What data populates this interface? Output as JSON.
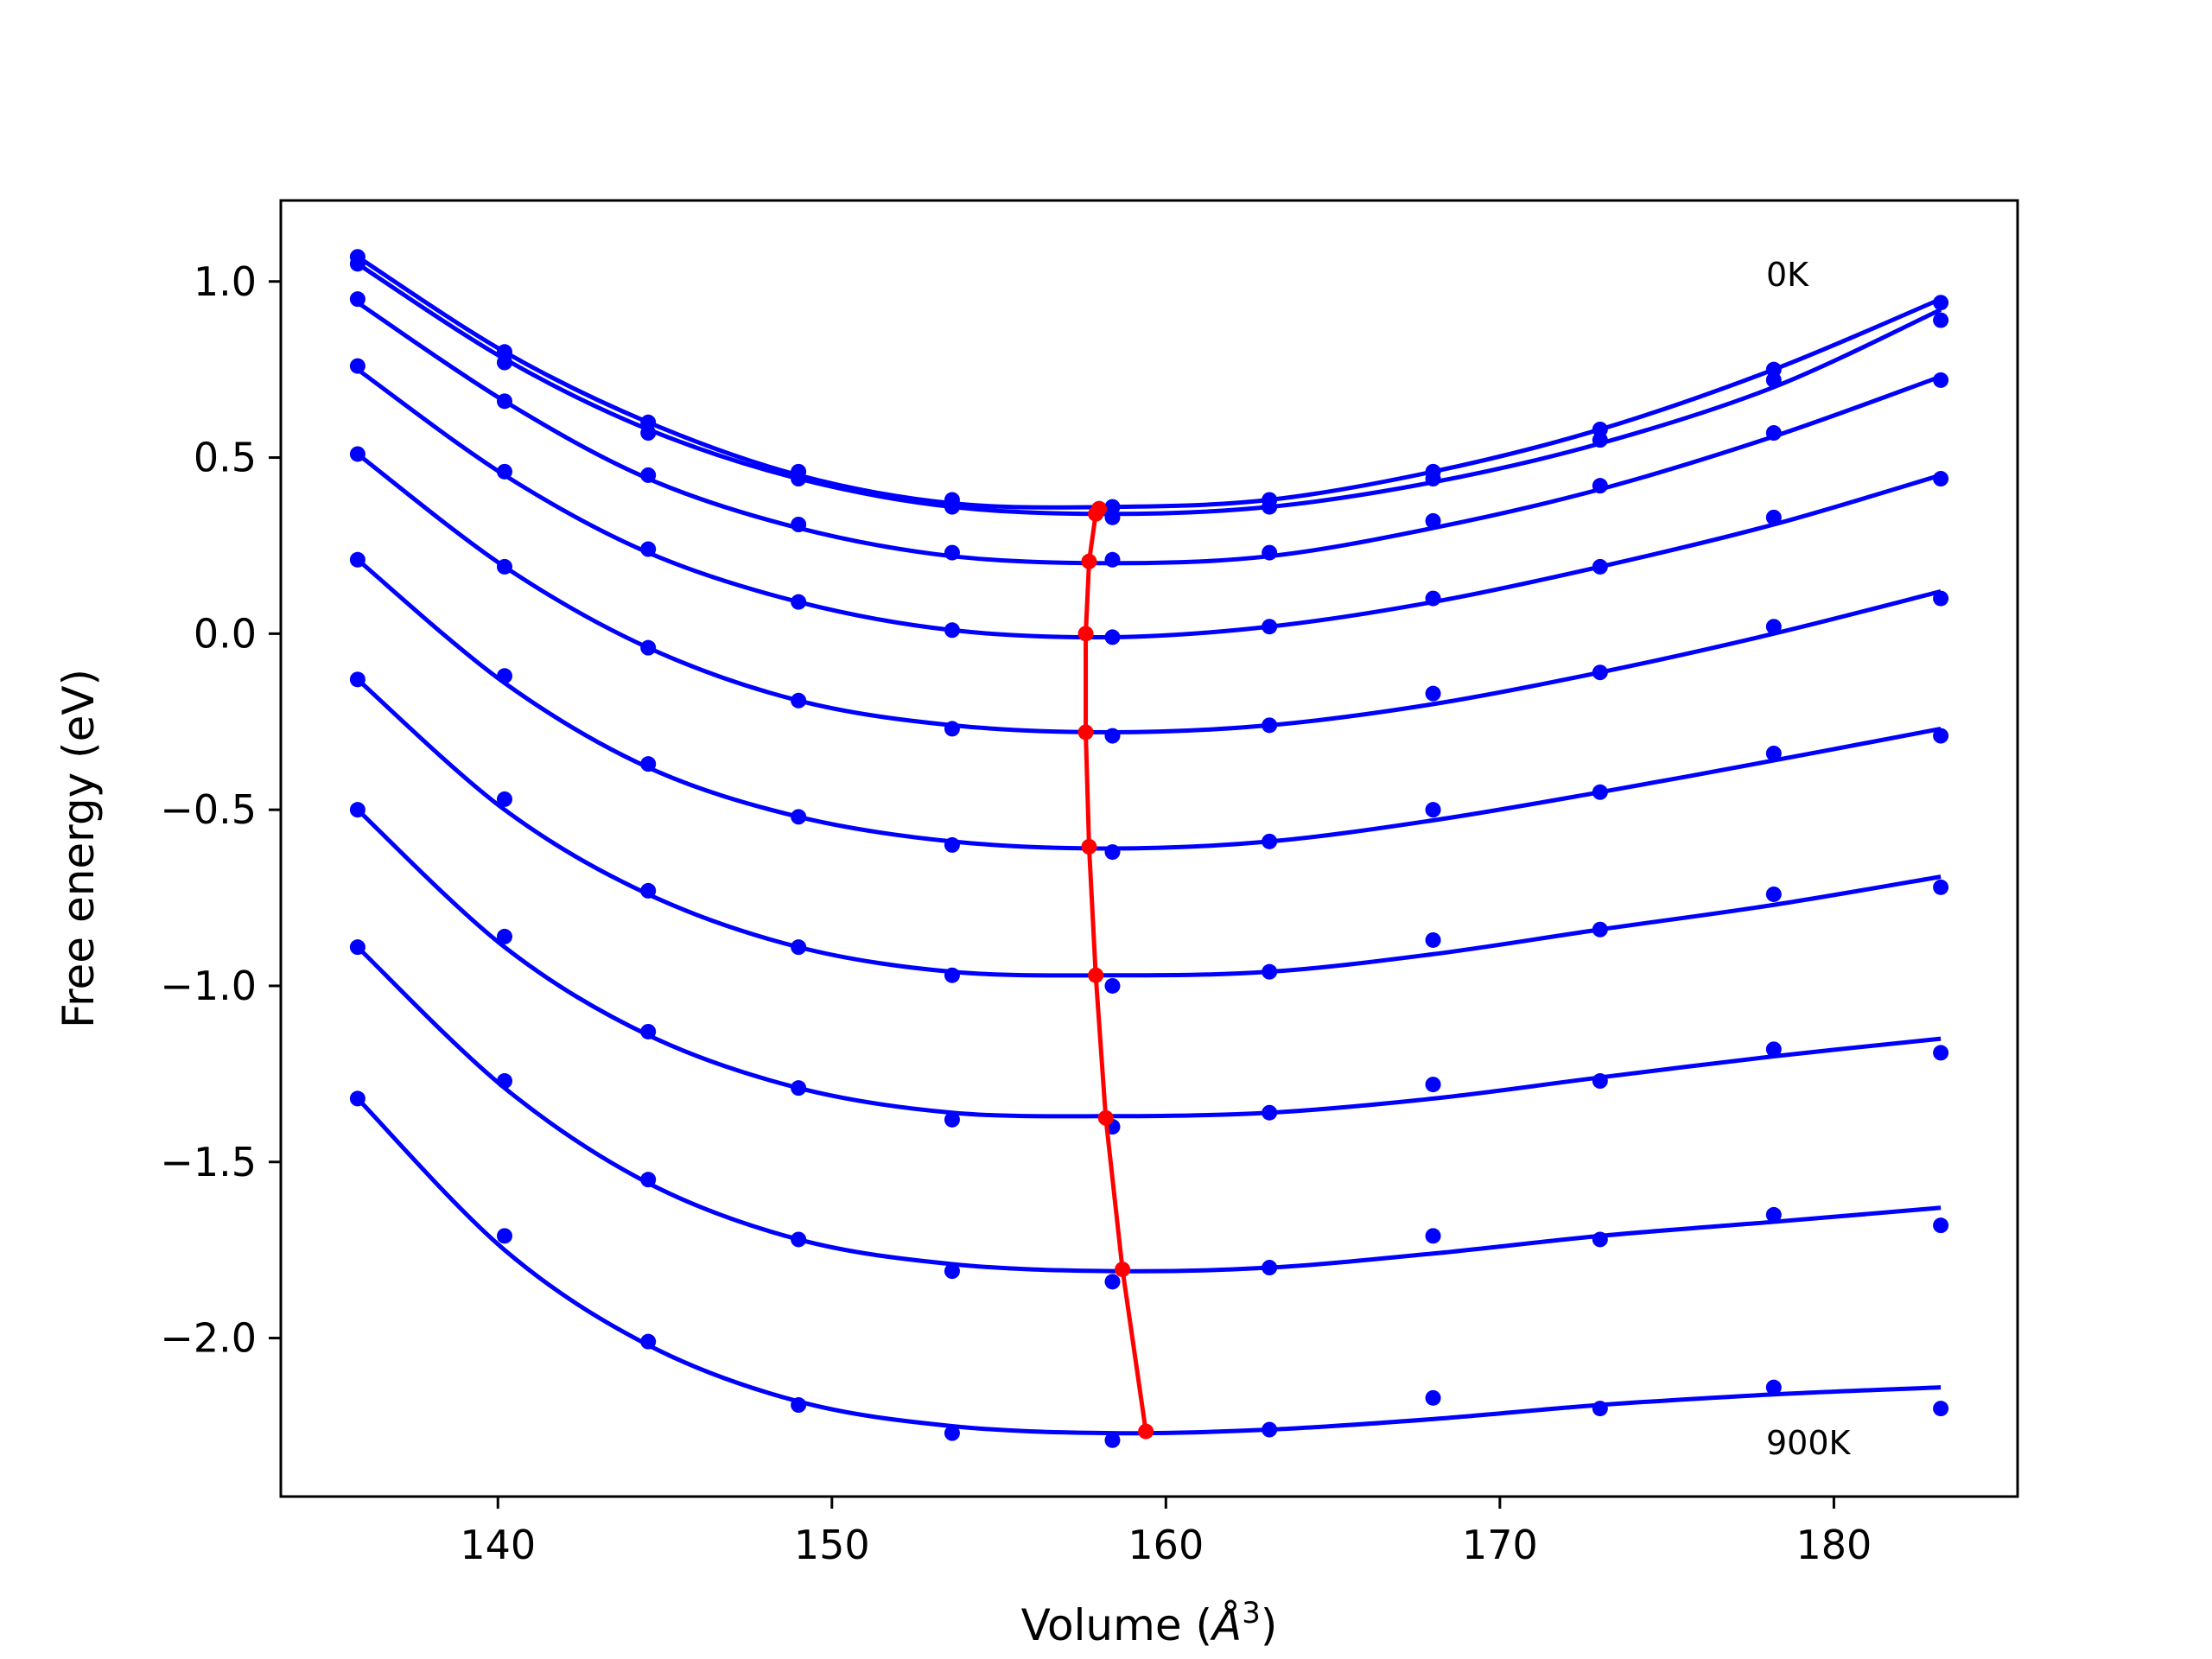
{
  "chart_data": {
    "type": "line",
    "xlabel_main": "Volume (",
    "xlabel_unit": "Å",
    "xlabel_sup": "3",
    "xlabel_close": ")",
    "ylabel": "Free energy (eV)",
    "xlim": [
      133.5,
      185.5
    ],
    "ylim": [
      -2.45,
      1.23
    ],
    "xticks": [
      140,
      150,
      160,
      170,
      180
    ],
    "xtick_labels": [
      "140",
      "150",
      "160",
      "170",
      "180"
    ],
    "yticks": [
      1.0,
      0.5,
      0.0,
      -0.5,
      -1.0,
      -1.5,
      -2.0
    ],
    "ytick_labels": [
      "1.0",
      "0.5",
      "0.0",
      "−0.5",
      "−1.0",
      "−1.5",
      "−2.0"
    ],
    "annotations": [
      {
        "text": "0K",
        "x": 178.2,
        "y": 1.0
      },
      {
        "text": "900K",
        "x": 178.2,
        "y": -2.36
      }
    ],
    "points_x": [
      135.8,
      140.2,
      144.5,
      149.0,
      153.6,
      158.4,
      163.1,
      168.0,
      173.0,
      178.2,
      183.2
    ],
    "series": [
      {
        "name": "0K",
        "points": [
          1.07,
          0.8,
          0.6,
          0.46,
          0.38,
          0.36,
          0.38,
          0.46,
          0.58,
          0.75,
          0.94
        ],
        "fit": [
          1.07,
          0.8,
          0.6,
          0.45,
          0.37,
          0.36,
          0.38,
          0.46,
          0.58,
          0.75,
          0.95
        ],
        "min": [
          158.0,
          0.355
        ]
      },
      {
        "points": [
          1.05,
          0.77,
          0.57,
          0.44,
          0.36,
          0.33,
          0.36,
          0.44,
          0.55,
          0.72,
          0.89
        ],
        "fit": [
          1.05,
          0.78,
          0.58,
          0.44,
          0.36,
          0.34,
          0.36,
          0.43,
          0.54,
          0.7,
          0.92
        ],
        "min": [
          157.9,
          0.34
        ]
      },
      {
        "points": [
          0.95,
          0.66,
          0.45,
          0.31,
          0.23,
          0.21,
          0.23,
          0.32,
          0.42,
          0.57,
          0.72
        ],
        "fit": [
          0.94,
          0.66,
          0.44,
          0.3,
          0.22,
          0.2,
          0.22,
          0.3,
          0.41,
          0.56,
          0.73
        ],
        "min": [
          157.7,
          0.205
        ]
      },
      {
        "points": [
          0.76,
          0.46,
          0.24,
          0.09,
          0.01,
          -0.01,
          0.02,
          0.1,
          0.19,
          0.33,
          0.44
        ],
        "fit": [
          0.75,
          0.45,
          0.23,
          0.09,
          0.01,
          -0.01,
          0.02,
          0.09,
          0.19,
          0.31,
          0.45
        ],
        "min": [
          157.6,
          0.0
        ]
      },
      {
        "points": [
          0.51,
          0.19,
          -0.04,
          -0.19,
          -0.27,
          -0.29,
          -0.26,
          -0.17,
          -0.11,
          0.02,
          0.1
        ],
        "fit": [
          0.51,
          0.19,
          -0.04,
          -0.19,
          -0.26,
          -0.28,
          -0.26,
          -0.2,
          -0.11,
          0.0,
          0.12
        ],
        "min": [
          157.6,
          -0.28
        ]
      },
      {
        "points": [
          0.21,
          -0.12,
          -0.37,
          -0.52,
          -0.6,
          -0.62,
          -0.59,
          -0.5,
          -0.45,
          -0.34,
          -0.29
        ],
        "fit": [
          0.21,
          -0.14,
          -0.38,
          -0.52,
          -0.59,
          -0.61,
          -0.59,
          -0.53,
          -0.45,
          -0.36,
          -0.27
        ],
        "min": [
          157.7,
          -0.605
        ]
      },
      {
        "points": [
          -0.13,
          -0.47,
          -0.73,
          -0.89,
          -0.97,
          -1.0,
          -0.96,
          -0.87,
          -0.84,
          -0.74,
          -0.72
        ],
        "fit": [
          -0.13,
          -0.5,
          -0.74,
          -0.89,
          -0.96,
          -0.97,
          -0.96,
          -0.91,
          -0.84,
          -0.77,
          -0.69
        ],
        "min": [
          157.9,
          -0.97
        ]
      },
      {
        "points": [
          -0.5,
          -0.86,
          -1.13,
          -1.29,
          -1.38,
          -1.4,
          -1.36,
          -1.28,
          -1.27,
          -1.18,
          -1.19
        ],
        "fit": [
          -0.5,
          -0.89,
          -1.14,
          -1.29,
          -1.36,
          -1.37,
          -1.36,
          -1.32,
          -1.26,
          -1.2,
          -1.15
        ],
        "min": [
          158.2,
          -1.375
        ]
      },
      {
        "points": [
          -0.89,
          -1.27,
          -1.55,
          -1.72,
          -1.81,
          -1.84,
          -1.8,
          -1.71,
          -1.72,
          -1.65,
          -1.68
        ],
        "fit": [
          -0.89,
          -1.29,
          -1.56,
          -1.72,
          -1.79,
          -1.81,
          -1.8,
          -1.76,
          -1.71,
          -1.67,
          -1.63
        ],
        "min": [
          158.7,
          -1.805
        ]
      },
      {
        "name": "900K",
        "points": [
          -1.32,
          -1.71,
          -2.01,
          -2.19,
          -2.27,
          -2.29,
          -2.26,
          -2.17,
          -2.2,
          -2.14,
          -2.2
        ],
        "fit": [
          -1.32,
          -1.75,
          -2.02,
          -2.18,
          -2.25,
          -2.27,
          -2.26,
          -2.23,
          -2.19,
          -2.16,
          -2.14
        ],
        "min": [
          159.4,
          -2.265
        ]
      }
    ],
    "colors": {
      "curves": "#0000ff",
      "minima": "#ff0000",
      "axes": "#000000"
    }
  }
}
